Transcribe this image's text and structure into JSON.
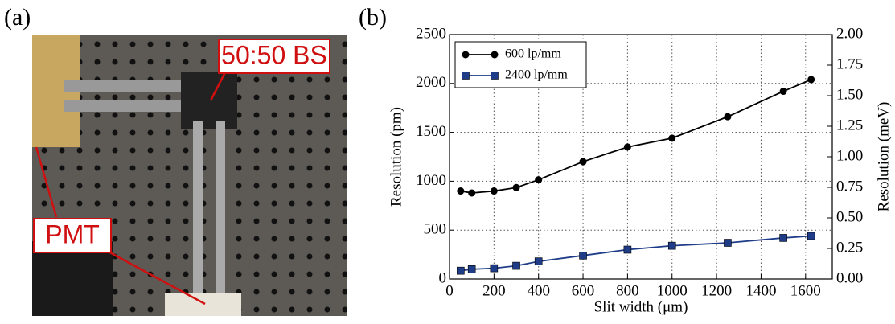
{
  "panels": {
    "a": "(a)",
    "b": "(b)"
  },
  "photo": {
    "labels": [
      "50:50 BS",
      "PMT"
    ]
  },
  "chart_data": {
    "type": "line",
    "x_label": "Slit width (μm)",
    "y_label": "Resolution (pm)",
    "y2_label": "Resolution (meV)",
    "x": [
      50,
      100,
      200,
      300,
      400,
      600,
      800,
      1000,
      1250,
      1500,
      1625
    ],
    "series": [
      {
        "name": "600 lp/mm",
        "color": "#000000",
        "marker": "circle",
        "values": [
          900,
          880,
          900,
          935,
          1015,
          1200,
          1350,
          1440,
          1660,
          1920,
          2040
        ]
      },
      {
        "name": "2400 lp/mm",
        "color": "#1f3c88",
        "marker": "square",
        "values": [
          85,
          100,
          110,
          135,
          180,
          240,
          300,
          340,
          370,
          420,
          440
        ]
      }
    ],
    "xlim": [
      0,
      1720
    ],
    "xticks": [
      0,
      200,
      400,
      600,
      800,
      1000,
      1200,
      1400,
      1600
    ],
    "ylim": [
      0,
      2500
    ],
    "yticks": [
      0,
      500,
      1000,
      1500,
      2000,
      2500
    ],
    "y2lim": [
      0,
      2
    ],
    "y2ticks": [
      {
        "value": 0,
        "label": "0.00"
      },
      0.25,
      {
        "value": 0.5,
        "label": "0.50"
      },
      0.75,
      {
        "value": 1,
        "label": "1.00"
      },
      1.25,
      {
        "value": 1.5,
        "label": "1.50"
      },
      1.75,
      {
        "value": 2,
        "label": "2.00"
      }
    ],
    "grid": true,
    "legend": "upper left"
  }
}
